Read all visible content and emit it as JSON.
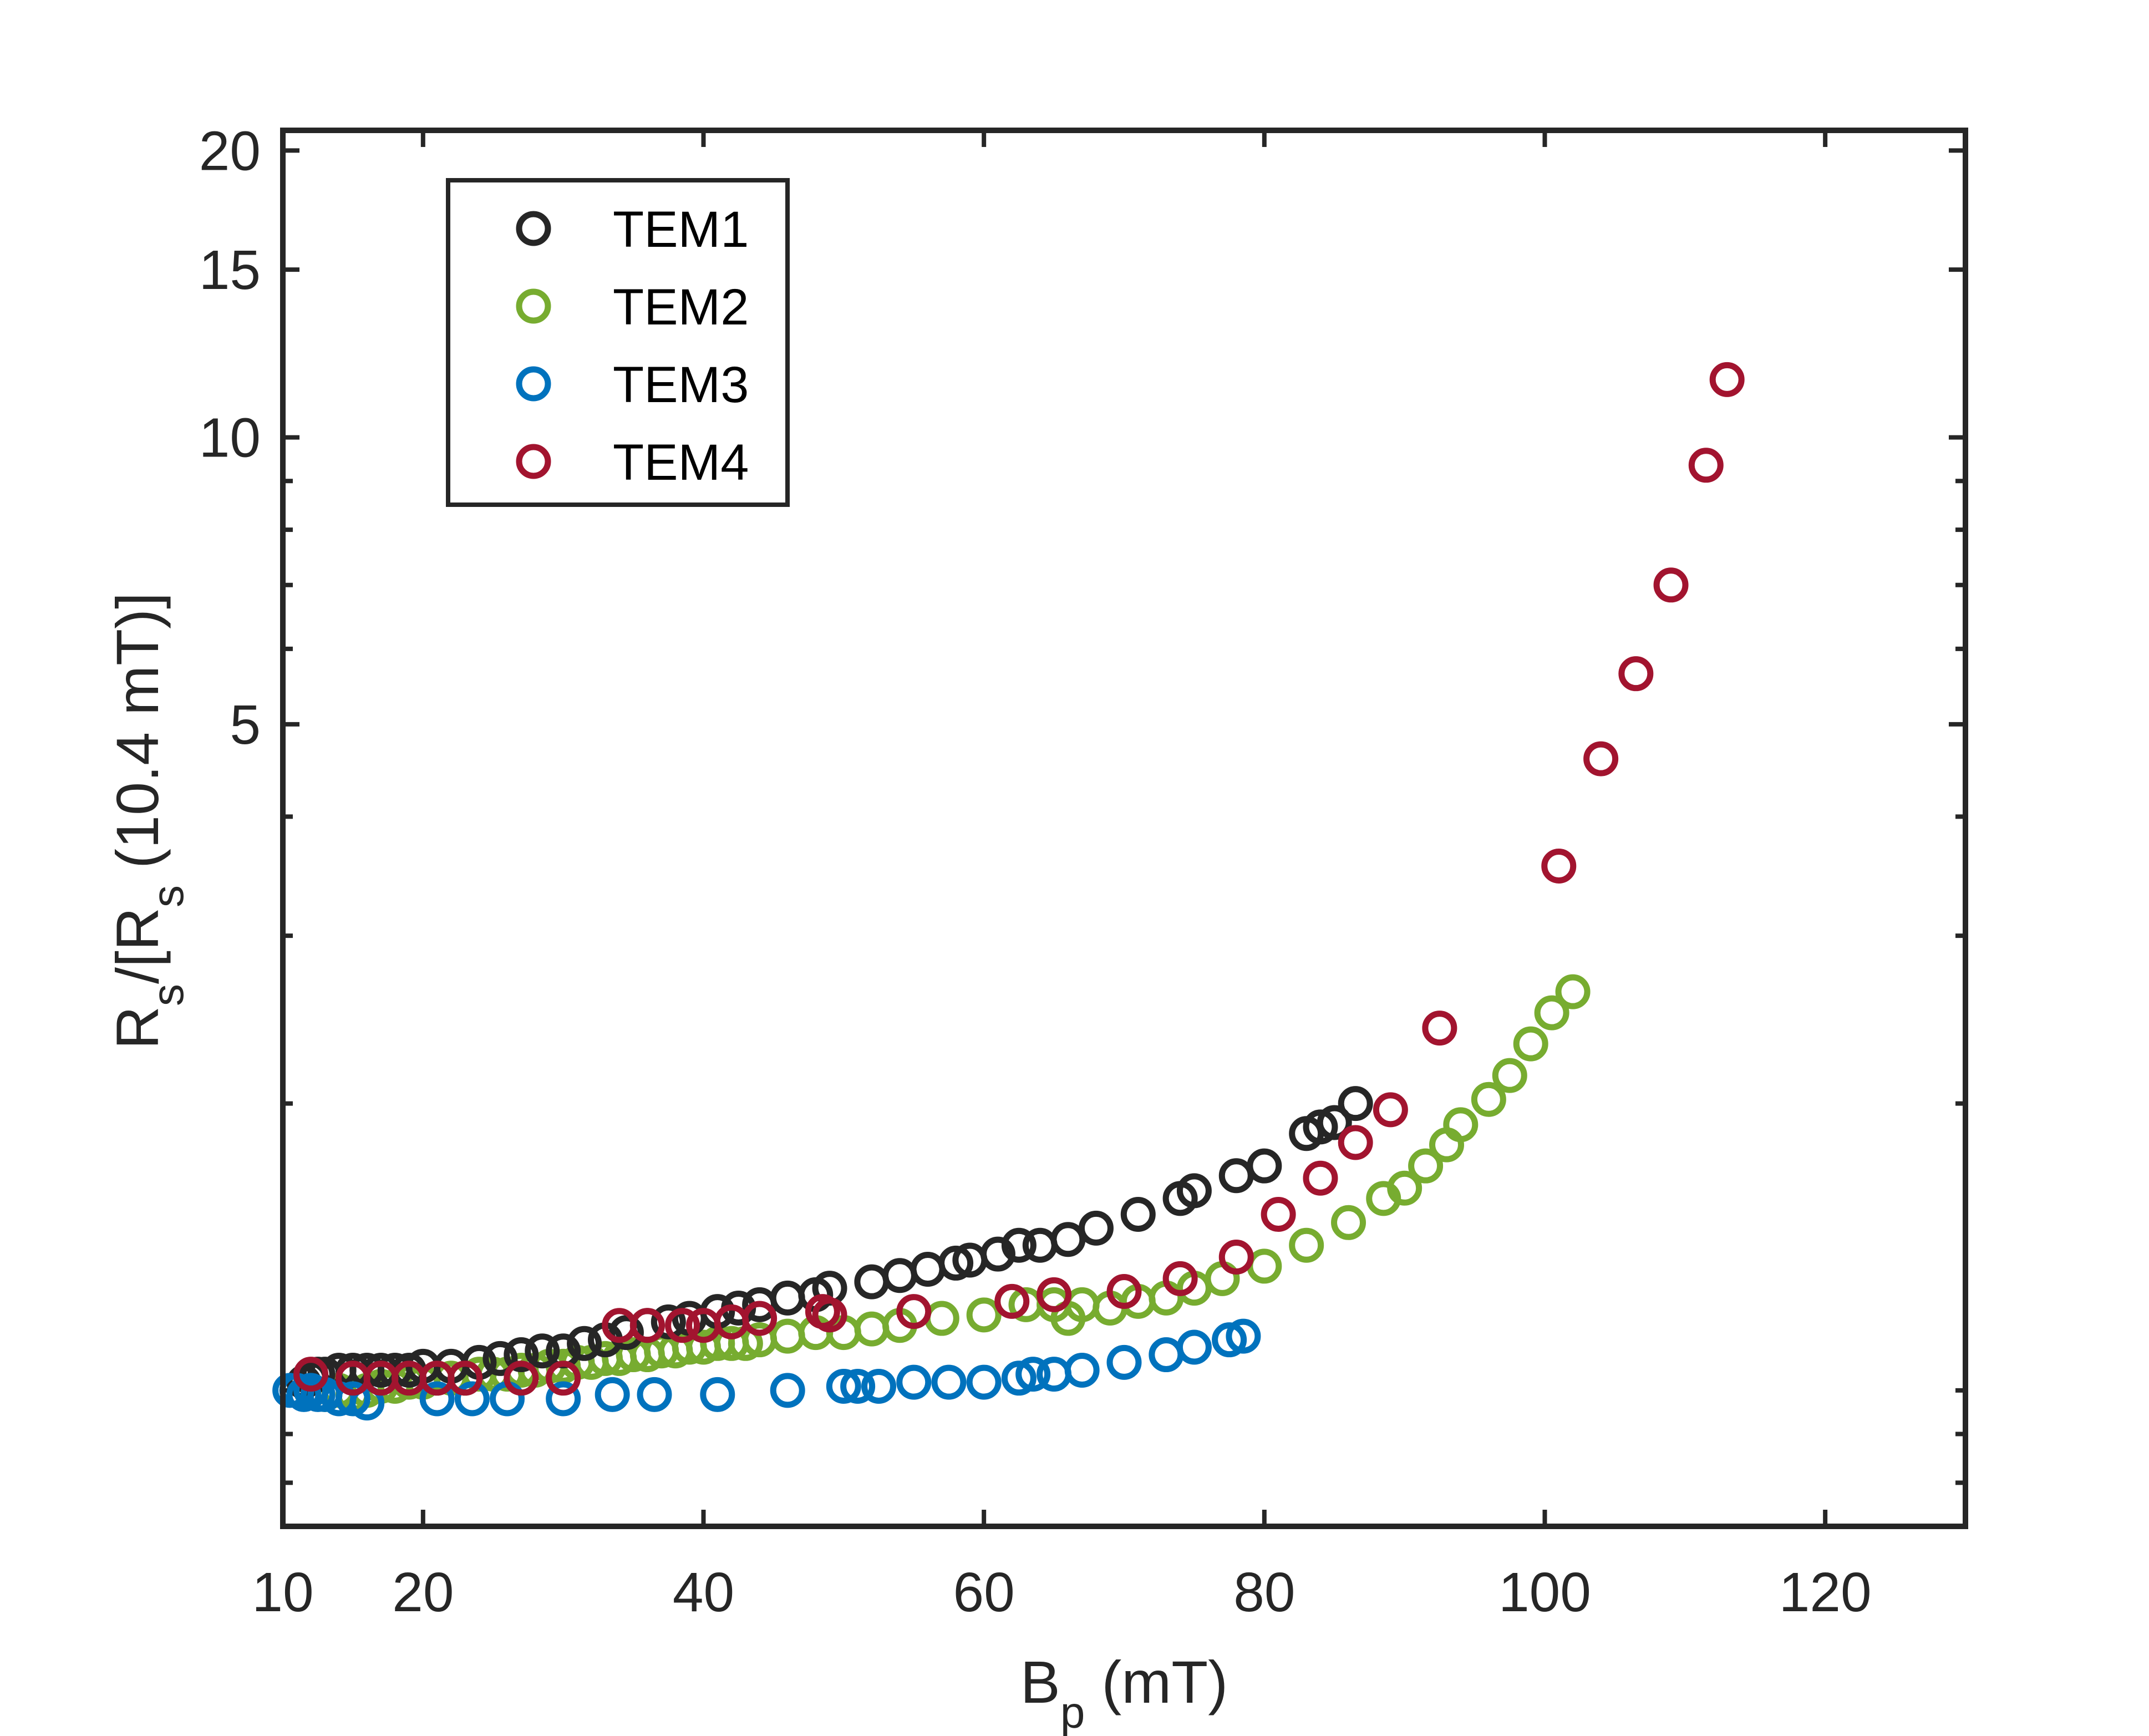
{
  "chart_data": {
    "type": "scatter",
    "title": "",
    "xlabel": {
      "main": "B",
      "sub": "p",
      "rest": " (mT)"
    },
    "ylabel": {
      "p1": "R",
      "s1": "s",
      "p2": "/[R",
      "s2": "s",
      "p3": " (10.4 mT)]"
    },
    "xscale": "linear",
    "yscale": "log",
    "xlim": [
      10,
      130
    ],
    "ylim": [
      0.72,
      21
    ],
    "xticks": [
      10,
      20,
      40,
      60,
      80,
      100,
      120
    ],
    "xtick_labels": [
      "10",
      "20",
      "40",
      "60",
      "80",
      "100",
      "120"
    ],
    "yticks": [
      5,
      10,
      15,
      20
    ],
    "ytick_labels": [
      "5",
      "10",
      "15",
      "20"
    ],
    "ytick_minor": [
      0.8,
      0.9,
      1,
      2,
      3,
      4,
      6,
      7,
      8,
      9
    ],
    "grid": false,
    "legend_position": "top-left",
    "series": [
      {
        "name": "TEM1",
        "color": "#262626",
        "points": [
          [
            11,
            1.0
          ],
          [
            11.5,
            1.02
          ],
          [
            12,
            1.03
          ],
          [
            12.5,
            1.04
          ],
          [
            13,
            1.04
          ],
          [
            14,
            1.05
          ],
          [
            15,
            1.05
          ],
          [
            16,
            1.05
          ],
          [
            17,
            1.05
          ],
          [
            18,
            1.05
          ],
          [
            19,
            1.05
          ],
          [
            20,
            1.06
          ],
          [
            22,
            1.06
          ],
          [
            24,
            1.07
          ],
          [
            25.5,
            1.08
          ],
          [
            27,
            1.09
          ],
          [
            28.5,
            1.1
          ],
          [
            30,
            1.1
          ],
          [
            31.5,
            1.12
          ],
          [
            33,
            1.13
          ],
          [
            34.5,
            1.15
          ],
          [
            36,
            1.17
          ],
          [
            37.5,
            1.18
          ],
          [
            39,
            1.19
          ],
          [
            41,
            1.21
          ],
          [
            42.5,
            1.22
          ],
          [
            44,
            1.23
          ],
          [
            46,
            1.25
          ],
          [
            48,
            1.26
          ],
          [
            49,
            1.28
          ],
          [
            52,
            1.3
          ],
          [
            54,
            1.32
          ],
          [
            56,
            1.34
          ],
          [
            58,
            1.36
          ],
          [
            59,
            1.37
          ],
          [
            61,
            1.39
          ],
          [
            62.5,
            1.42
          ],
          [
            64,
            1.42
          ],
          [
            66,
            1.44
          ],
          [
            68,
            1.48
          ],
          [
            71,
            1.53
          ],
          [
            74,
            1.59
          ],
          [
            75,
            1.62
          ],
          [
            78,
            1.68
          ],
          [
            80,
            1.72
          ],
          [
            83,
            1.86
          ],
          [
            84,
            1.89
          ],
          [
            85,
            1.91
          ],
          [
            86.5,
            2.0
          ]
        ]
      },
      {
        "name": "TEM2",
        "color": "#77AC30",
        "points": [
          [
            11,
            1.0
          ],
          [
            12,
            1.0
          ],
          [
            13,
            0.99
          ],
          [
            14,
            1.0
          ],
          [
            15,
            0.99
          ],
          [
            16,
            1.0
          ],
          [
            17,
            1.01
          ],
          [
            18,
            1.01
          ],
          [
            19,
            1.02
          ],
          [
            20,
            1.02
          ],
          [
            21,
            1.03
          ],
          [
            22,
            1.03
          ],
          [
            23,
            1.03
          ],
          [
            24,
            1.04
          ],
          [
            25,
            1.04
          ],
          [
            26,
            1.04
          ],
          [
            27,
            1.05
          ],
          [
            28,
            1.05
          ],
          [
            29,
            1.06
          ],
          [
            30,
            1.06
          ],
          [
            31,
            1.07
          ],
          [
            32,
            1.07
          ],
          [
            33,
            1.08
          ],
          [
            34,
            1.08
          ],
          [
            35,
            1.09
          ],
          [
            36,
            1.09
          ],
          [
            37,
            1.1
          ],
          [
            38,
            1.1
          ],
          [
            39,
            1.11
          ],
          [
            40,
            1.11
          ],
          [
            41,
            1.12
          ],
          [
            42,
            1.12
          ],
          [
            43,
            1.12
          ],
          [
            44,
            1.13
          ],
          [
            46,
            1.14
          ],
          [
            48,
            1.15
          ],
          [
            50,
            1.15
          ],
          [
            52,
            1.16
          ],
          [
            54,
            1.17
          ],
          [
            57,
            1.19
          ],
          [
            60,
            1.2
          ],
          [
            63,
            1.23
          ],
          [
            65,
            1.23
          ],
          [
            66,
            1.19
          ],
          [
            67,
            1.23
          ],
          [
            69,
            1.22
          ],
          [
            71,
            1.24
          ],
          [
            73,
            1.25
          ],
          [
            75,
            1.28
          ],
          [
            77,
            1.31
          ],
          [
            80,
            1.35
          ],
          [
            83,
            1.42
          ],
          [
            86,
            1.5
          ],
          [
            88.5,
            1.59
          ],
          [
            90,
            1.63
          ],
          [
            91.5,
            1.72
          ],
          [
            93,
            1.81
          ],
          [
            94,
            1.9
          ],
          [
            96,
            2.02
          ],
          [
            97.5,
            2.14
          ],
          [
            99,
            2.31
          ],
          [
            100.5,
            2.49
          ],
          [
            102,
            2.62
          ]
        ]
      },
      {
        "name": "TEM3",
        "color": "#0072BD",
        "points": [
          [
            10.5,
            1.0
          ],
          [
            11,
            1.0
          ],
          [
            11.5,
            0.99
          ],
          [
            12,
            1.0
          ],
          [
            12.5,
            0.99
          ],
          [
            13,
            0.99
          ],
          [
            14,
            0.98
          ],
          [
            15,
            0.98
          ],
          [
            16,
            0.97
          ],
          [
            21,
            0.98
          ],
          [
            23.5,
            0.98
          ],
          [
            26,
            0.98
          ],
          [
            30,
            0.98
          ],
          [
            33.5,
            0.99
          ],
          [
            36.5,
            0.99
          ],
          [
            41,
            0.99
          ],
          [
            46,
            1.0
          ],
          [
            50,
            1.01
          ],
          [
            51,
            1.01
          ],
          [
            52.5,
            1.01
          ],
          [
            55,
            1.02
          ],
          [
            57.5,
            1.02
          ],
          [
            60,
            1.02
          ],
          [
            62.5,
            1.03
          ],
          [
            63.5,
            1.04
          ],
          [
            65,
            1.04
          ],
          [
            67,
            1.05
          ],
          [
            70,
            1.07
          ],
          [
            73,
            1.09
          ],
          [
            75,
            1.11
          ],
          [
            77.5,
            1.13
          ],
          [
            78.5,
            1.14
          ]
        ]
      },
      {
        "name": "TEM4",
        "color": "#A2142F",
        "points": [
          [
            12,
            1.04
          ],
          [
            15,
            1.03
          ],
          [
            17,
            1.03
          ],
          [
            19,
            1.03
          ],
          [
            21,
            1.03
          ],
          [
            23,
            1.03
          ],
          [
            27,
            1.03
          ],
          [
            30,
            1.03
          ],
          [
            34,
            1.17
          ],
          [
            36,
            1.17
          ],
          [
            38.5,
            1.17
          ],
          [
            40,
            1.17
          ],
          [
            42,
            1.18
          ],
          [
            44,
            1.19
          ],
          [
            48.5,
            1.21
          ],
          [
            49,
            1.2
          ],
          [
            55,
            1.21
          ],
          [
            62,
            1.24
          ],
          [
            65,
            1.26
          ],
          [
            70,
            1.27
          ],
          [
            74,
            1.31
          ],
          [
            78,
            1.38
          ],
          [
            81,
            1.53
          ],
          [
            84,
            1.67
          ],
          [
            86.5,
            1.82
          ],
          [
            89,
            1.97
          ],
          [
            92.5,
            2.4
          ],
          [
            101,
            3.55
          ],
          [
            104,
            4.6
          ],
          [
            106.5,
            5.65
          ],
          [
            109,
            7.0
          ],
          [
            111.5,
            9.35
          ],
          [
            113,
            11.5
          ]
        ]
      }
    ]
  }
}
